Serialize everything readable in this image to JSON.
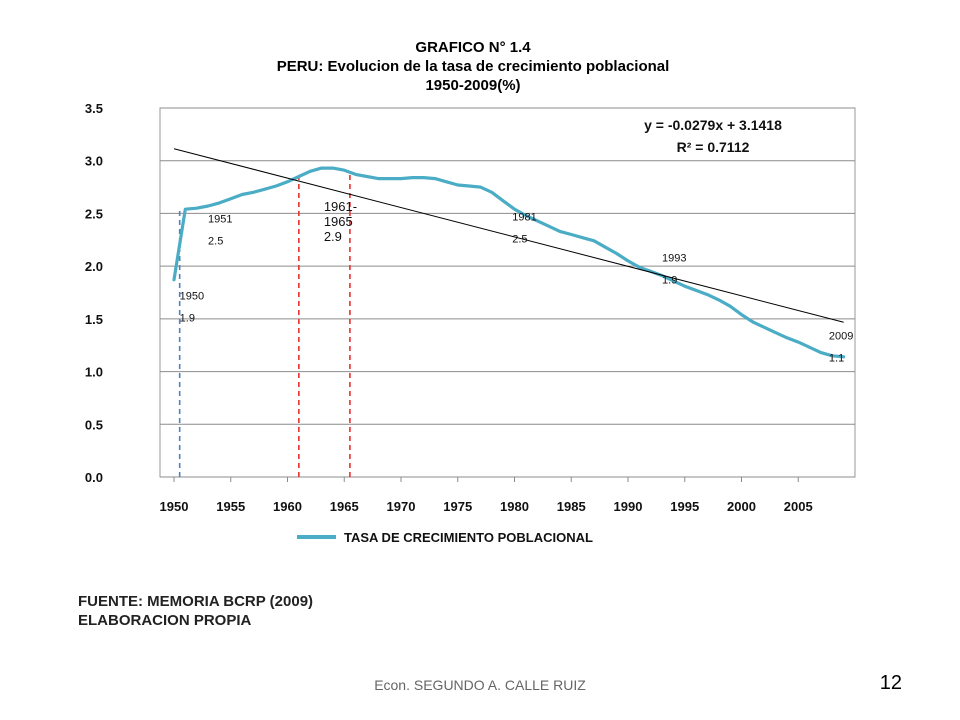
{
  "chart_data": {
    "type": "line",
    "title": "GRAFICO N° 1.4",
    "subtitle": "PERU: Evolucion de la tasa de crecimiento poblacional",
    "subtitle2": "1950-2009(%)",
    "xlabel": "",
    "ylabel": "",
    "xlim": [
      1950,
      2010
    ],
    "ylim": [
      0,
      3.5
    ],
    "x_ticks": [
      1950,
      1955,
      1960,
      1965,
      1970,
      1975,
      1980,
      1985,
      1990,
      1995,
      2000,
      2005
    ],
    "y_ticks": [
      "0.0",
      "0.5",
      "1.0",
      "1.5",
      "2.0",
      "2.5",
      "3.0",
      "3.5"
    ],
    "grid": "horizontal",
    "legend_position": "bottom",
    "series": [
      {
        "name": "TASA DE CRECIMIENTO POBLACIONAL",
        "color": "#4BACC6",
        "x": [
          1950,
          1951,
          1952,
          1953,
          1954,
          1955,
          1956,
          1957,
          1958,
          1959,
          1960,
          1961,
          1962,
          1963,
          1964,
          1965,
          1966,
          1967,
          1968,
          1969,
          1970,
          1971,
          1972,
          1973,
          1974,
          1975,
          1976,
          1977,
          1978,
          1979,
          1980,
          1981,
          1982,
          1983,
          1984,
          1985,
          1986,
          1987,
          1988,
          1989,
          1990,
          1991,
          1992,
          1993,
          1994,
          1995,
          1996,
          1997,
          1998,
          1999,
          2000,
          2001,
          2002,
          2003,
          2004,
          2005,
          2006,
          2007,
          2008,
          2009
        ],
        "values": [
          1.87,
          2.54,
          2.55,
          2.57,
          2.6,
          2.64,
          2.68,
          2.7,
          2.73,
          2.76,
          2.8,
          2.85,
          2.9,
          2.93,
          2.93,
          2.91,
          2.87,
          2.85,
          2.83,
          2.83,
          2.83,
          2.84,
          2.84,
          2.83,
          2.8,
          2.77,
          2.76,
          2.75,
          2.7,
          2.62,
          2.54,
          2.48,
          2.43,
          2.38,
          2.33,
          2.3,
          2.27,
          2.24,
          2.18,
          2.12,
          2.05,
          1.99,
          1.95,
          1.91,
          1.86,
          1.81,
          1.77,
          1.73,
          1.68,
          1.62,
          1.54,
          1.47,
          1.42,
          1.37,
          1.32,
          1.28,
          1.23,
          1.18,
          1.15,
          1.14
        ]
      },
      {
        "name": "trend",
        "color": "#000000",
        "x": [
          1950,
          2009
        ],
        "values": [
          3.1139,
          1.4679
        ]
      }
    ],
    "vlines": [
      {
        "x": 1950.5,
        "ymax": 2.54,
        "color": "#4F81BD"
      },
      {
        "x": 1961,
        "ymax": 2.9,
        "color": "#E8312C"
      },
      {
        "x": 1965.5,
        "ymax": 2.9,
        "color": "#E8312C"
      }
    ],
    "annotations": [
      {
        "lines": [
          "1950",
          "1.9"
        ],
        "x": 1950.5,
        "y": 1.78,
        "size": "small"
      },
      {
        "lines": [
          "1951",
          "2.5"
        ],
        "x": 1953.0,
        "y": 2.51,
        "size": "small"
      },
      {
        "lines": [
          "1961-",
          "1965",
          "2.9"
        ],
        "x": 1963.2,
        "y": 2.62,
        "size": "big"
      },
      {
        "lines": [
          "1981",
          "2.5"
        ],
        "x": 1979.8,
        "y": 2.53,
        "size": "small"
      },
      {
        "lines": [
          "1993",
          "1.9"
        ],
        "x": 1993.0,
        "y": 2.14,
        "size": "small"
      },
      {
        "lines": [
          "2009",
          "1.1"
        ],
        "x": 2007.7,
        "y": 1.4,
        "size": "small"
      }
    ],
    "equation": {
      "lines": [
        "y = -0.0279x + 3.1418",
        "R² = 0.7112"
      ]
    }
  },
  "footer": {
    "source_line1": "FUENTE: MEMORIA BCRP (2009)",
    "source_line2": "ELABORACION PROPIA",
    "author": "Econ. SEGUNDO A. CALLE RUIZ",
    "page_number": "12"
  }
}
